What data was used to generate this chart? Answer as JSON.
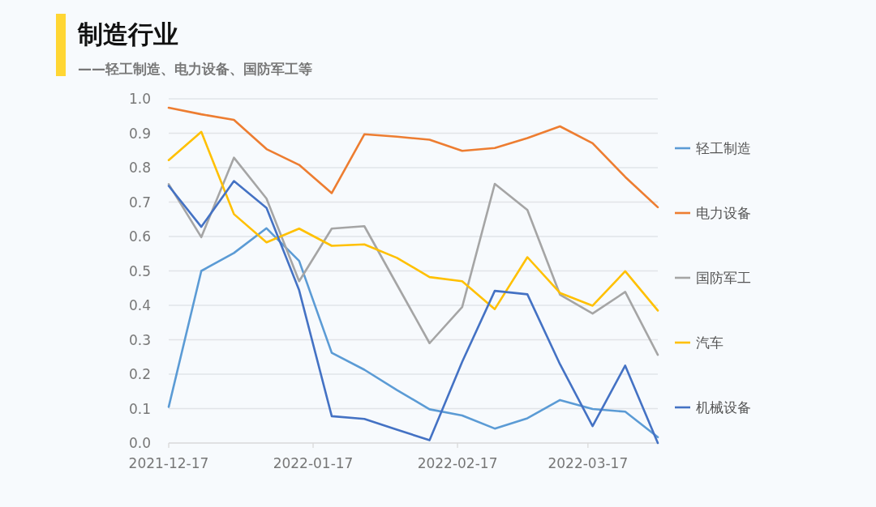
{
  "chart_data": {
    "type": "line",
    "title": "制造行业",
    "subtitle": "——轻工制造、电力设备、国防军工等",
    "x": [
      "2021-12-17",
      "2021-12-24",
      "2021-12-31",
      "2022-01-07",
      "2022-01-14",
      "2022-01-21",
      "2022-01-28",
      "2022-02-04",
      "2022-02-11",
      "2022-02-18",
      "2022-02-25",
      "2022-03-04",
      "2022-03-11",
      "2022-03-18",
      "2022-03-25",
      "2022-04-01"
    ],
    "xlim": [
      "2021-12-17",
      "2022-04-01"
    ],
    "xticks": [
      "2021-12-17",
      "2022-01-17",
      "2022-02-17",
      "2022-03-17"
    ],
    "ylim": [
      0,
      1
    ],
    "yticks": [
      {
        "value": 0,
        "label": "0.0"
      },
      {
        "value": 0.1,
        "label": "0.1"
      },
      {
        "value": 0.2,
        "label": "0.2"
      },
      {
        "value": 0.3,
        "label": "0.3"
      },
      {
        "value": 0.4,
        "label": "0.4"
      },
      {
        "value": 0.5,
        "label": "0.5"
      },
      {
        "value": 0.6,
        "label": "0.6"
      },
      {
        "value": 0.7,
        "label": "0.7"
      },
      {
        "value": 0.8,
        "label": "0.8"
      },
      {
        "value": 0.9,
        "label": "0.9"
      },
      {
        "value": 1,
        "label": "1.0"
      }
    ],
    "grid": "y",
    "legend": "right",
    "marker": "none",
    "line_style": "solid",
    "series": [
      {
        "name": "轻工制造",
        "color": "#5b9bd5",
        "values": [
          0.105,
          0.5,
          0.552,
          0.624,
          0.529,
          0.262,
          0.213,
          0.154,
          0.098,
          0.08,
          0.042,
          0.072,
          0.125,
          0.099,
          0.091,
          0.017
        ]
      },
      {
        "name": "电力设备",
        "color": "#ed7d31",
        "values": [
          0.974,
          0.955,
          0.939,
          0.854,
          0.808,
          0.726,
          0.897,
          0.89,
          0.881,
          0.849,
          0.857,
          0.886,
          0.92,
          0.871,
          0.773,
          0.685
        ]
      },
      {
        "name": "国防军工",
        "color": "#a5a5a5",
        "values": [
          0.752,
          0.598,
          0.829,
          0.71,
          0.47,
          0.623,
          0.63,
          0.46,
          0.29,
          0.395,
          0.753,
          0.677,
          0.431,
          0.376,
          0.439,
          0.256
        ]
      },
      {
        "name": "汽车",
        "color": "#ffc000",
        "values": [
          0.822,
          0.904,
          0.665,
          0.583,
          0.623,
          0.573,
          0.577,
          0.538,
          0.482,
          0.47,
          0.389,
          0.54,
          0.436,
          0.399,
          0.499,
          0.385
        ]
      },
      {
        "name": "机械设备",
        "color": "#4472c4",
        "values": [
          0.747,
          0.628,
          0.761,
          0.683,
          0.444,
          0.078,
          0.07,
          0.039,
          0.008,
          0.236,
          0.442,
          0.432,
          0.229,
          0.049,
          0.225,
          0
        ]
      }
    ]
  }
}
